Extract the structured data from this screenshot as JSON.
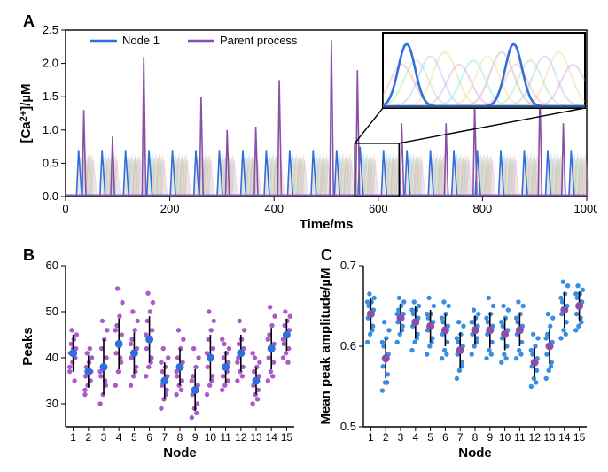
{
  "colors": {
    "node1": "#2e6fdb",
    "parent": "#8a4fa8",
    "bg_traces": [
      "rgba(240,150,150,0.35)",
      "rgba(150,220,150,0.35)",
      "rgba(150,180,240,0.35)",
      "rgba(240,200,120,0.35)",
      "rgba(200,150,220,0.35)",
      "rgba(120,220,220,0.35)",
      "rgba(220,220,120,0.35)",
      "rgba(180,150,150,0.35)"
    ],
    "axis": "#000000",
    "errorbar": "#000000",
    "scatterB_point": "#a85bc9",
    "scatterB_mean": "#2e6fdb",
    "scatterC_point": "#3a8de0",
    "scatterC_mean": "#8a4fa8"
  },
  "panelA": {
    "label": "A",
    "ylabel": "[Ca²⁺]/µM",
    "xlabel": "Time/ms",
    "legend": {
      "node1": "Node 1",
      "parent": "Parent process"
    },
    "xlim": [
      0,
      1000
    ],
    "ylim": [
      0,
      2.5
    ],
    "yticks": [
      0,
      0.5,
      1.0,
      1.5,
      2.0,
      2.5
    ],
    "xticks": [
      0,
      200,
      400,
      600,
      800,
      1000
    ],
    "parent_spikes": [
      {
        "t": 35,
        "h": 1.3
      },
      {
        "t": 90,
        "h": 0.9
      },
      {
        "t": 150,
        "h": 2.1
      },
      {
        "t": 260,
        "h": 1.5
      },
      {
        "t": 310,
        "h": 1.0
      },
      {
        "t": 365,
        "h": 1.05
      },
      {
        "t": 410,
        "h": 1.75
      },
      {
        "t": 510,
        "h": 2.35
      },
      {
        "t": 560,
        "h": 1.9
      },
      {
        "t": 645,
        "h": 1.1
      },
      {
        "t": 730,
        "h": 1.1
      },
      {
        "t": 785,
        "h": 1.4
      },
      {
        "t": 910,
        "h": 1.6
      },
      {
        "t": 955,
        "h": 1.1
      }
    ],
    "node1_spikes": [
      {
        "t": 25,
        "h": 0.7
      },
      {
        "t": 70,
        "h": 0.7
      },
      {
        "t": 115,
        "h": 0.7
      },
      {
        "t": 160,
        "h": 0.7
      },
      {
        "t": 205,
        "h": 0.7
      },
      {
        "t": 250,
        "h": 0.7
      },
      {
        "t": 295,
        "h": 0.7
      },
      {
        "t": 340,
        "h": 0.7
      },
      {
        "t": 385,
        "h": 0.7
      },
      {
        "t": 430,
        "h": 0.7
      },
      {
        "t": 475,
        "h": 0.7
      },
      {
        "t": 520,
        "h": 0.7
      },
      {
        "t": 565,
        "h": 0.75
      },
      {
        "t": 610,
        "h": 0.7
      },
      {
        "t": 655,
        "h": 0.7
      },
      {
        "t": 700,
        "h": 0.7
      },
      {
        "t": 745,
        "h": 0.7
      },
      {
        "t": 790,
        "h": 0.7
      },
      {
        "t": 835,
        "h": 0.7
      },
      {
        "t": 880,
        "h": 0.7
      },
      {
        "t": 925,
        "h": 0.7
      },
      {
        "t": 970,
        "h": 0.7
      }
    ],
    "bg_nodes_count": 13,
    "inset_source": [
      555,
      640
    ]
  },
  "panelB": {
    "label": "B",
    "ylabel": "Peaks",
    "xlabel": "Node",
    "xlim": [
      0.5,
      15.5
    ],
    "ylim": [
      25,
      60
    ],
    "yticks": [
      30,
      40,
      50,
      60
    ],
    "nodes": [
      {
        "mean": 41,
        "sd": 4.0,
        "pts": [
          37,
          39,
          40,
          41,
          42,
          42,
          43,
          44,
          45,
          46,
          35,
          38
        ]
      },
      {
        "mean": 37,
        "sd": 3.5,
        "pts": [
          32,
          34,
          35,
          36,
          37,
          37,
          38,
          39,
          40,
          41,
          42,
          33
        ]
      },
      {
        "mean": 38,
        "sd": 6.0,
        "pts": [
          30,
          32,
          34,
          36,
          38,
          40,
          42,
          44,
          46,
          48,
          35,
          37
        ]
      },
      {
        "mean": 43,
        "sd": 5.5,
        "pts": [
          34,
          37,
          39,
          41,
          43,
          45,
          47,
          49,
          52,
          55,
          40,
          46
        ]
      },
      {
        "mean": 41,
        "sd": 4.5,
        "pts": [
          34,
          36,
          38,
          40,
          41,
          42,
          44,
          46,
          48,
          50,
          37,
          43
        ]
      },
      {
        "mean": 44,
        "sd": 5.0,
        "pts": [
          36,
          38,
          40,
          42,
          44,
          46,
          48,
          50,
          52,
          54,
          39,
          45
        ]
      },
      {
        "mean": 35,
        "sd": 4.0,
        "pts": [
          29,
          31,
          33,
          34,
          35,
          36,
          37,
          38,
          40,
          42,
          32,
          39
        ]
      },
      {
        "mean": 38,
        "sd": 4.0,
        "pts": [
          32,
          34,
          35,
          36,
          38,
          39,
          40,
          42,
          44,
          46,
          33,
          37
        ]
      },
      {
        "mean": 33,
        "sd": 4.5,
        "pts": [
          27,
          29,
          30,
          32,
          33,
          34,
          36,
          38,
          40,
          42,
          28,
          35
        ]
      },
      {
        "mean": 40,
        "sd": 5.0,
        "pts": [
          32,
          34,
          36,
          38,
          40,
          42,
          44,
          46,
          48,
          50,
          35,
          41
        ]
      },
      {
        "mean": 38,
        "sd": 3.5,
        "pts": [
          33,
          34,
          35,
          36,
          38,
          39,
          40,
          41,
          42,
          43,
          37,
          44
        ]
      },
      {
        "mean": 41,
        "sd": 4.0,
        "pts": [
          35,
          37,
          38,
          40,
          41,
          42,
          43,
          44,
          46,
          48,
          36,
          39
        ]
      },
      {
        "mean": 35,
        "sd": 3.0,
        "pts": [
          30,
          32,
          33,
          34,
          35,
          36,
          37,
          38,
          39,
          40,
          31,
          41
        ]
      },
      {
        "mean": 42,
        "sd": 4.5,
        "pts": [
          35,
          37,
          39,
          40,
          42,
          43,
          45,
          47,
          49,
          51,
          36,
          44
        ]
      },
      {
        "mean": 45,
        "sd": 3.5,
        "pts": [
          40,
          41,
          42,
          43,
          45,
          46,
          47,
          48,
          49,
          50,
          39,
          44
        ]
      }
    ]
  },
  "panelC": {
    "label": "C",
    "ylabel": "Mean peak amplitude/µM",
    "xlabel": "Node",
    "xlim": [
      0.5,
      15.5
    ],
    "ylim": [
      0.5,
      0.7
    ],
    "yticks": [
      0.5,
      0.6,
      0.7
    ],
    "nodes": [
      {
        "mean": 0.64,
        "sd": 0.02,
        "pts": [
          0.605,
          0.615,
          0.625,
          0.635,
          0.64,
          0.645,
          0.65,
          0.655,
          0.66,
          0.665,
          0.62,
          0.655
        ]
      },
      {
        "mean": 0.585,
        "sd": 0.025,
        "pts": [
          0.545,
          0.555,
          0.565,
          0.575,
          0.585,
          0.59,
          0.6,
          0.61,
          0.62,
          0.63,
          0.555,
          0.605
        ]
      },
      {
        "mean": 0.635,
        "sd": 0.018,
        "pts": [
          0.605,
          0.615,
          0.625,
          0.63,
          0.635,
          0.64,
          0.645,
          0.65,
          0.655,
          0.66,
          0.62,
          0.64
        ]
      },
      {
        "mean": 0.63,
        "sd": 0.02,
        "pts": [
          0.595,
          0.605,
          0.615,
          0.625,
          0.63,
          0.635,
          0.64,
          0.645,
          0.65,
          0.655,
          0.61,
          0.645
        ]
      },
      {
        "mean": 0.625,
        "sd": 0.02,
        "pts": [
          0.59,
          0.6,
          0.61,
          0.62,
          0.625,
          0.63,
          0.635,
          0.64,
          0.65,
          0.66,
          0.605,
          0.64
        ]
      },
      {
        "mean": 0.62,
        "sd": 0.02,
        "pts": [
          0.585,
          0.595,
          0.605,
          0.615,
          0.62,
          0.625,
          0.63,
          0.64,
          0.65,
          0.655,
          0.59,
          0.635
        ]
      },
      {
        "mean": 0.595,
        "sd": 0.022,
        "pts": [
          0.56,
          0.57,
          0.58,
          0.59,
          0.595,
          0.6,
          0.605,
          0.615,
          0.625,
          0.63,
          0.575,
          0.61
        ]
      },
      {
        "mean": 0.62,
        "sd": 0.018,
        "pts": [
          0.59,
          0.6,
          0.61,
          0.615,
          0.62,
          0.625,
          0.63,
          0.635,
          0.64,
          0.645,
          0.605,
          0.63
        ]
      },
      {
        "mean": 0.62,
        "sd": 0.022,
        "pts": [
          0.585,
          0.595,
          0.605,
          0.615,
          0.62,
          0.625,
          0.63,
          0.64,
          0.65,
          0.66,
          0.59,
          0.635
        ]
      },
      {
        "mean": 0.615,
        "sd": 0.02,
        "pts": [
          0.58,
          0.59,
          0.6,
          0.61,
          0.615,
          0.62,
          0.625,
          0.635,
          0.645,
          0.65,
          0.585,
          0.63
        ]
      },
      {
        "mean": 0.62,
        "sd": 0.02,
        "pts": [
          0.585,
          0.595,
          0.605,
          0.615,
          0.62,
          0.625,
          0.63,
          0.64,
          0.65,
          0.655,
          0.59,
          0.635
        ]
      },
      {
        "mean": 0.58,
        "sd": 0.018,
        "pts": [
          0.55,
          0.56,
          0.57,
          0.575,
          0.58,
          0.585,
          0.59,
          0.6,
          0.61,
          0.615,
          0.555,
          0.595
        ]
      },
      {
        "mean": 0.6,
        "sd": 0.022,
        "pts": [
          0.56,
          0.57,
          0.58,
          0.59,
          0.6,
          0.605,
          0.615,
          0.625,
          0.635,
          0.64,
          0.575,
          0.61
        ]
      },
      {
        "mean": 0.645,
        "sd": 0.022,
        "pts": [
          0.61,
          0.62,
          0.63,
          0.64,
          0.645,
          0.65,
          0.655,
          0.665,
          0.675,
          0.68,
          0.615,
          0.66
        ]
      },
      {
        "mean": 0.65,
        "sd": 0.018,
        "pts": [
          0.62,
          0.625,
          0.63,
          0.64,
          0.65,
          0.655,
          0.66,
          0.665,
          0.67,
          0.675,
          0.635,
          0.665
        ]
      }
    ]
  }
}
